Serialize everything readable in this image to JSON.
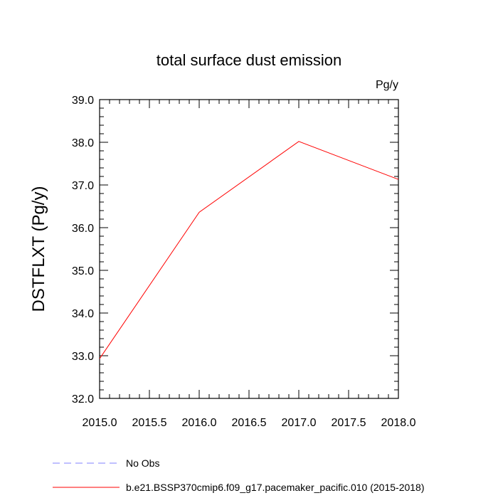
{
  "chart_data": {
    "type": "line",
    "title": "total surface dust emission",
    "units_label": "Pg/y",
    "xlabel": "",
    "ylabel": "DSTFLXT  (Pg/y)",
    "xlim": [
      2015.0,
      2018.0
    ],
    "ylim": [
      32.0,
      39.0
    ],
    "x_ticks": [
      "2015.0",
      "2015.5",
      "2016.0",
      "2016.5",
      "2017.0",
      "2017.5",
      "2018.0"
    ],
    "y_ticks": [
      "32.0",
      "33.0",
      "34.0",
      "35.0",
      "36.0",
      "37.0",
      "38.0",
      "39.0"
    ],
    "grid": false,
    "legend_position": "bottom",
    "series": [
      {
        "name": "No Obs",
        "color": "#8080ff",
        "line_style": "dashed",
        "x": [],
        "y": []
      },
      {
        "name": "b.e21.BSSP370cmip6.f09_g17.pacemaker_pacific.010 (2015-2018)",
        "color": "#ff0000",
        "line_style": "solid",
        "x": [
          2015.0,
          2016.0,
          2017.0,
          2018.0
        ],
        "y": [
          32.93,
          36.36,
          38.02,
          37.13
        ]
      }
    ]
  }
}
